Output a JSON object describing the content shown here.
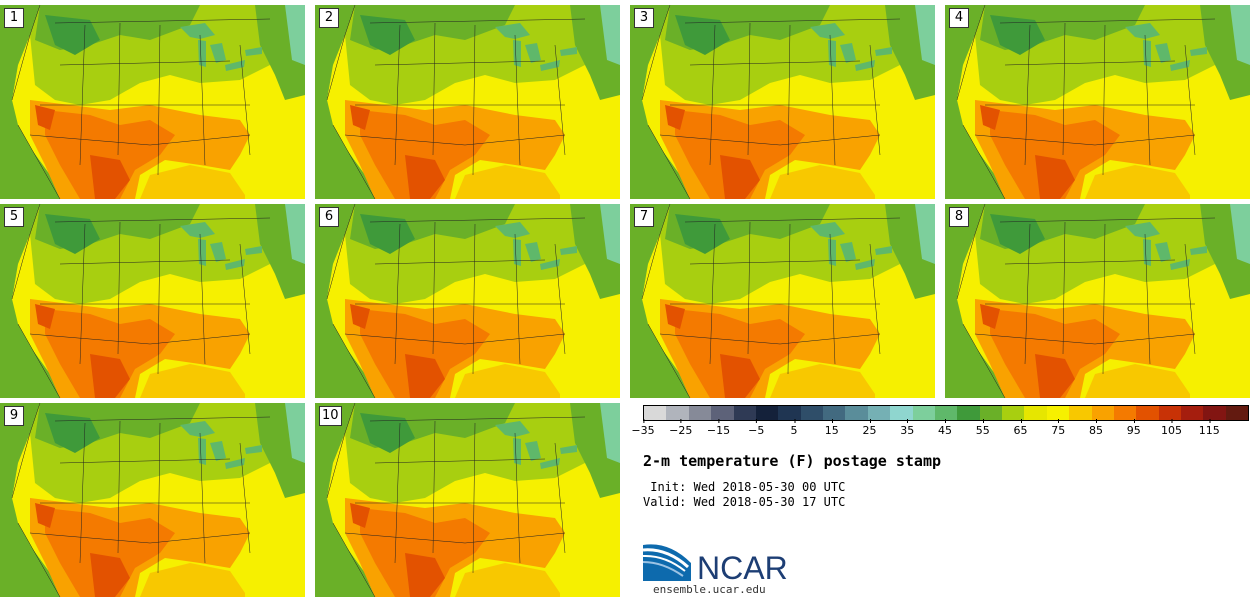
{
  "title": "2-m temperature (F) postage stamp",
  "init_label": " Init:",
  "init_value": "Wed 2018-05-30 00 UTC",
  "valid_label": "Valid:",
  "valid_value": "Wed 2018-05-30 17 UTC",
  "logo_text": "NCAR",
  "url": "ensemble.ucar.edu",
  "members": [
    "1",
    "2",
    "3",
    "4",
    "5",
    "6",
    "7",
    "8",
    "9",
    "10"
  ],
  "colorbar": {
    "colors": [
      "#d9d9d9",
      "#b0b4bc",
      "#868a98",
      "#5d6279",
      "#2f3a55",
      "#14213a",
      "#1f3552",
      "#2f4e69",
      "#426a80",
      "#5a8d9a",
      "#75b0b4",
      "#8fd6cf",
      "#7dcf9c",
      "#5fb86a",
      "#3f9a3a",
      "#6ab028",
      "#a8cf10",
      "#e6e600",
      "#f6f000",
      "#f8c800",
      "#f9a200",
      "#f47a00",
      "#e35200",
      "#c83206",
      "#a51e0e",
      "#821512",
      "#631a10"
    ],
    "tick_labels": [
      "−35",
      "−25",
      "−15",
      "−5",
      "5",
      "15",
      "25",
      "35",
      "45",
      "55",
      "65",
      "75",
      "85",
      "95",
      "105",
      "115"
    ]
  }
}
